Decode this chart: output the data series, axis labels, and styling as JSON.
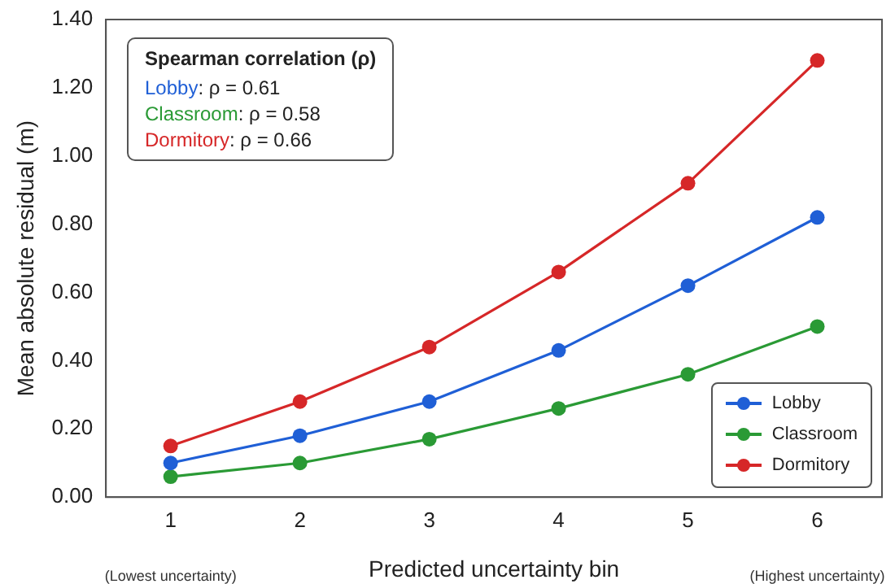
{
  "chart_data": {
    "type": "line",
    "xlabel": "Predicted uncertainty bin",
    "ylabel": "Mean absolute residual (m)",
    "categories": [
      "1",
      "2",
      "3",
      "4",
      "5",
      "6"
    ],
    "series": [
      {
        "name": "Lobby",
        "color": "#1f5fd6",
        "values": [
          0.1,
          0.18,
          0.28,
          0.43,
          0.62,
          0.82
        ]
      },
      {
        "name": "Classroom",
        "color": "#2a9a35",
        "values": [
          0.06,
          0.1,
          0.17,
          0.26,
          0.36,
          0.5
        ]
      },
      {
        "name": "Dormitory",
        "color": "#d62728",
        "values": [
          0.15,
          0.28,
          0.44,
          0.66,
          0.92,
          1.28
        ]
      }
    ],
    "ylim": [
      0,
      1.4
    ],
    "yticks": [
      {
        "value": 0,
        "label": "0.00"
      },
      {
        "value": 0.2,
        "label": "0.20"
      },
      {
        "value": 0.4,
        "label": "0.40"
      },
      {
        "value": 0.6,
        "label": "0.60"
      },
      {
        "value": 0.8,
        "label": "0.80"
      },
      {
        "value": 1.0,
        "label": "1.00"
      },
      {
        "value": 1.2,
        "label": "1.20"
      },
      {
        "value": 1.4,
        "label": "1.40"
      }
    ],
    "grid": false,
    "legend": "bottom right",
    "marker": "circle",
    "line_style": "solid",
    "annotations": [
      "(Lowest uncertainty)",
      "(Highest uncertainty)",
      "Spearman correlation (ρ)",
      "Lobby: ρ = 0.61",
      "Classroom: ρ = 0.58",
      "Dormitory: ρ = 0.66"
    ]
  }
}
